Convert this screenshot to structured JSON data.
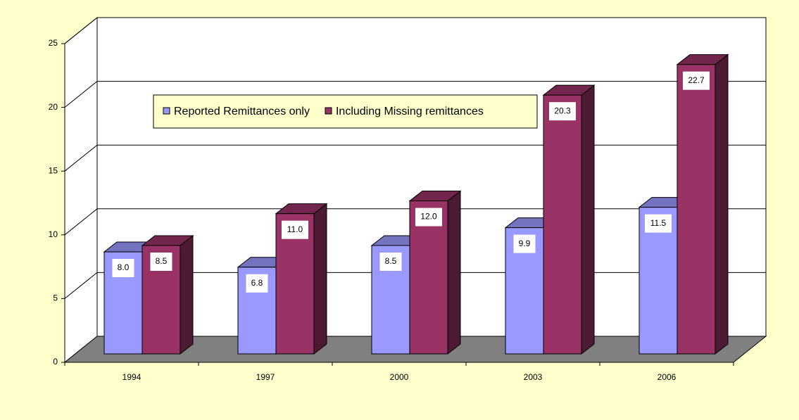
{
  "chart_data": {
    "type": "bar3d",
    "categories": [
      "1994",
      "1997",
      "2000",
      "2003",
      "2006"
    ],
    "series": [
      {
        "name": "Reported Remittances only",
        "color": "#9999ff",
        "values": [
          8.0,
          6.8,
          8.5,
          9.9,
          11.5
        ],
        "value_labels": [
          "8.0",
          "6.8",
          "8.5",
          "9.9",
          "11.5"
        ]
      },
      {
        "name": "Including Missing remittances",
        "color": "#993366",
        "values": [
          8.5,
          11.0,
          12.0,
          20.3,
          22.7
        ],
        "value_labels": [
          "8.5",
          "11.0",
          "12.0",
          "20.3",
          "22.7"
        ]
      }
    ],
    "ylim": [
      0,
      25
    ],
    "yticks": [
      0,
      5,
      10,
      15,
      20,
      25
    ],
    "grid": true,
    "legend": "top"
  }
}
